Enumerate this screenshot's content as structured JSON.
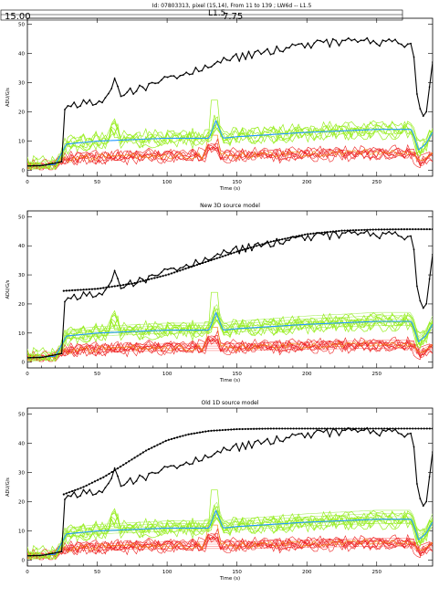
{
  "header": {
    "top_title": "Id: 07803313, pixel (15,14), From 11 to 139 ; LW6d -- L1.5",
    "box_left": "15.00",
    "box_mid": "L1.5",
    "box_right": "7.75"
  },
  "colors": {
    "total": "#000000",
    "green": "#99ee22",
    "blue": "#2299ff",
    "red": "#ee2222",
    "orange": "#ee8800",
    "green_model": "#aaee66",
    "red_model": "#ff8888"
  },
  "chart_data": [
    {
      "type": "line",
      "title": "",
      "xlabel": "Time (s)",
      "ylabel": "ADU/G/s",
      "xlim": [
        0,
        290
      ],
      "ylim": [
        -2,
        52
      ],
      "xticks": [
        0,
        50,
        100,
        150,
        200,
        250
      ],
      "yticks": [
        0,
        10,
        20,
        30,
        40,
        50
      ],
      "series": [
        {
          "role": "total",
          "x": [
            0,
            10,
            20,
            25,
            26,
            28,
            40,
            55,
            60,
            63,
            66,
            75,
            100,
            125,
            150,
            175,
            200,
            225,
            250,
            270,
            276,
            278,
            282,
            285,
            290
          ],
          "y": [
            1.5,
            1.6,
            2.5,
            3,
            20,
            22,
            23,
            24.5,
            26,
            34,
            26,
            27,
            31,
            35,
            38.5,
            41,
            43,
            44,
            44,
            43,
            43.5,
            28,
            19,
            18,
            37
          ]
        },
        {
          "role": "green-mean",
          "x": [
            0,
            20,
            28,
            50,
            100,
            130,
            135,
            140,
            150,
            200,
            250,
            275,
            280,
            285,
            290
          ],
          "y": [
            1.5,
            2,
            9,
            10,
            11,
            11,
            17,
            11,
            11.5,
            13,
            14,
            14,
            7,
            9,
            13
          ]
        },
        {
          "role": "red-mean",
          "x": [
            0,
            20,
            28,
            50,
            100,
            150,
            200,
            250,
            275,
            280,
            290
          ],
          "y": [
            1.5,
            2,
            4,
            4.5,
            5,
            5,
            5.5,
            6,
            6,
            3,
            5
          ]
        }
      ]
    },
    {
      "type": "line",
      "title": "New 3D source model",
      "xlabel": "Time (s)",
      "ylabel": "ADU/G/s",
      "xlim": [
        0,
        290
      ],
      "ylim": [
        -2,
        52
      ],
      "xticks": [
        0,
        50,
        100,
        150,
        200,
        250
      ],
      "yticks": [
        0,
        10,
        20,
        30,
        40,
        50
      ],
      "series": [
        {
          "role": "total",
          "x": [
            0,
            10,
            20,
            25,
            26,
            28,
            40,
            55,
            60,
            63,
            66,
            75,
            100,
            125,
            150,
            175,
            200,
            225,
            250,
            270,
            276,
            278,
            282,
            285,
            290
          ],
          "y": [
            1.5,
            1.6,
            2.5,
            3,
            20,
            22,
            23,
            24.5,
            26,
            34,
            26,
            27,
            31,
            35,
            38.5,
            41,
            43,
            44,
            44,
            43,
            43.5,
            28,
            19,
            18,
            37
          ]
        },
        {
          "role": "total-model",
          "x": [
            26,
            50,
            75,
            100,
            125,
            150,
            175,
            200,
            225,
            250,
            275,
            290
          ],
          "y": [
            24.5,
            25.2,
            27,
            30,
            34,
            38,
            41.5,
            44,
            45.2,
            45.6,
            45.7,
            45.7
          ]
        },
        {
          "role": "green-mean",
          "x": [
            0,
            20,
            28,
            50,
            100,
            130,
            135,
            140,
            150,
            200,
            250,
            275,
            280,
            285,
            290
          ],
          "y": [
            1.5,
            2,
            9,
            10,
            11,
            11,
            17,
            11,
            11.5,
            13,
            14,
            14,
            7,
            9,
            13
          ]
        },
        {
          "role": "red-mean",
          "x": [
            0,
            20,
            28,
            50,
            100,
            150,
            200,
            250,
            275,
            280,
            290
          ],
          "y": [
            1.5,
            2,
            4,
            4.5,
            5,
            5,
            5.5,
            6,
            6,
            3,
            5
          ]
        }
      ]
    },
    {
      "type": "line",
      "title": "Old 1D source model",
      "xlabel": "Time (s)",
      "ylabel": "ADU/G/s",
      "xlim": [
        0,
        290
      ],
      "ylim": [
        -2,
        52
      ],
      "xticks": [
        0,
        50,
        100,
        150,
        200,
        250
      ],
      "yticks": [
        0,
        10,
        20,
        30,
        40,
        50
      ],
      "series": [
        {
          "role": "total",
          "x": [
            0,
            10,
            20,
            25,
            26,
            28,
            40,
            55,
            60,
            63,
            66,
            75,
            100,
            125,
            150,
            175,
            200,
            225,
            250,
            270,
            276,
            278,
            282,
            285,
            290
          ],
          "y": [
            1.5,
            1.6,
            2.5,
            3,
            20,
            22,
            23,
            24.5,
            26,
            34,
            26,
            27,
            31,
            35,
            38.5,
            41,
            43,
            44,
            44,
            43,
            43.5,
            28,
            19,
            18,
            37
          ]
        },
        {
          "role": "total-model",
          "x": [
            26,
            40,
            55,
            70,
            85,
            100,
            115,
            130,
            150,
            175,
            200,
            250,
            290
          ],
          "y": [
            22.5,
            25,
            28.5,
            33,
            37.5,
            41,
            43,
            44.2,
            44.8,
            45,
            45,
            45,
            45
          ]
        },
        {
          "role": "green-mean",
          "x": [
            0,
            20,
            28,
            50,
            100,
            130,
            135,
            140,
            150,
            200,
            250,
            275,
            280,
            285,
            290
          ],
          "y": [
            1.5,
            2,
            9,
            10,
            11,
            11,
            17,
            11,
            11.5,
            13,
            14,
            14,
            7,
            9,
            13
          ]
        },
        {
          "role": "red-mean",
          "x": [
            0,
            20,
            28,
            50,
            100,
            150,
            200,
            250,
            275,
            280,
            290
          ],
          "y": [
            1.5,
            2,
            4,
            4.5,
            5,
            5,
            5.5,
            6,
            6,
            3,
            5
          ]
        }
      ]
    }
  ]
}
